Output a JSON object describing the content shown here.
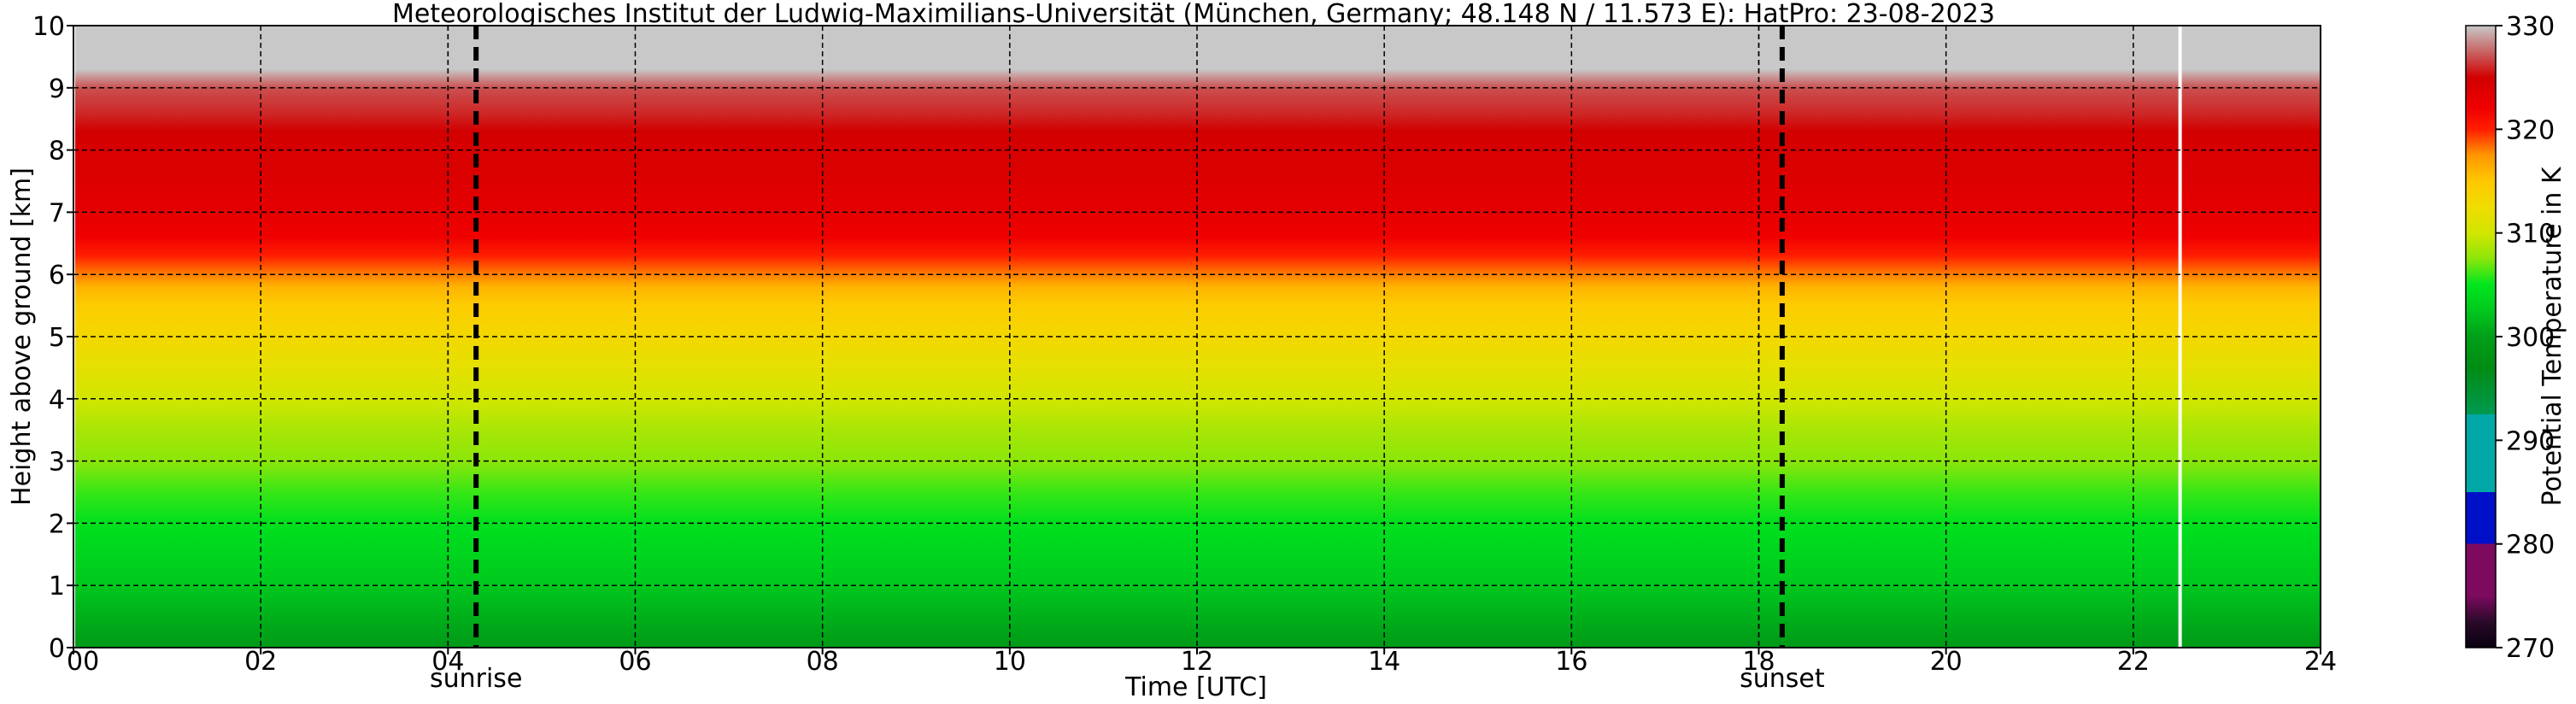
{
  "chart_data": {
    "type": "heatmap",
    "title": "Meteorologisches Institut der Ludwig-Maximilians-Universität (München, Germany; 48.148 N / 11.573 E):    HatPro: 23-08-2023",
    "xlabel": "Time [UTC]",
    "ylabel": "Height above ground [km]",
    "colorbar_label": "Potential Temperature in K",
    "xlim": [
      0,
      24
    ],
    "ylim": [
      0,
      10
    ],
    "x_ticks": [
      0,
      2,
      4,
      6,
      8,
      10,
      12,
      14,
      16,
      18,
      20,
      22,
      24
    ],
    "x_tick_labels": [
      "00",
      "02",
      "04",
      "06",
      "08",
      "10",
      "12",
      "14",
      "16",
      "18",
      "20",
      "22",
      "24"
    ],
    "y_ticks": [
      0,
      1,
      2,
      3,
      4,
      5,
      6,
      7,
      8,
      9,
      10
    ],
    "y_tick_labels": [
      "0",
      "1",
      "2",
      "3",
      "4",
      "5",
      "6",
      "7",
      "8",
      "9",
      "10"
    ],
    "colorbar_range": [
      270,
      330
    ],
    "colorbar_ticks": [
      270,
      280,
      290,
      300,
      310,
      320,
      330
    ],
    "grid": true,
    "markers": [
      {
        "label": "sunrise",
        "x": 4.3
      },
      {
        "label": "sunset",
        "x": 18.25
      }
    ],
    "extra_gridlines_x": [
      4.0,
      18.0
    ],
    "data_gap_x": 22.5,
    "height_km": [
      0,
      0.5,
      1,
      1.5,
      2,
      2.5,
      3,
      3.5,
      4,
      4.5,
      5,
      5.5,
      5.8,
      6,
      6.3,
      6.6,
      7,
      7.5,
      8,
      8.3,
      8.6,
      9,
      9.3,
      10
    ],
    "potential_temperature_K": [
      299,
      301,
      302.5,
      303.5,
      304.5,
      306,
      307.5,
      308.5,
      310,
      311.5,
      313,
      314.5,
      316,
      318,
      320,
      322,
      323,
      324,
      324.5,
      325,
      326,
      327,
      330,
      330
    ],
    "colormap": [
      {
        "value": 270,
        "color": "#0a0010"
      },
      {
        "value": 272.5,
        "color": "#2a0a2a"
      },
      {
        "value": 275,
        "color": "#7d0a5f"
      },
      {
        "value": 280,
        "color": "#7d0a5f"
      },
      {
        "value": 280.01,
        "color": "#0010c8"
      },
      {
        "value": 285,
        "color": "#0010c8"
      },
      {
        "value": 285.01,
        "color": "#00a8a8"
      },
      {
        "value": 292.5,
        "color": "#00a8a8"
      },
      {
        "value": 292.51,
        "color": "#009a50"
      },
      {
        "value": 297,
        "color": "#008c14"
      },
      {
        "value": 300,
        "color": "#00a018"
      },
      {
        "value": 302.5,
        "color": "#00c81e"
      },
      {
        "value": 305,
        "color": "#00e61e"
      },
      {
        "value": 307.5,
        "color": "#8ce60a"
      },
      {
        "value": 310,
        "color": "#d2e600"
      },
      {
        "value": 312.5,
        "color": "#f0dc00"
      },
      {
        "value": 315,
        "color": "#ffc800"
      },
      {
        "value": 317.5,
        "color": "#ff9600"
      },
      {
        "value": 320,
        "color": "#ff1e00"
      },
      {
        "value": 322,
        "color": "#f00000"
      },
      {
        "value": 325,
        "color": "#d20000"
      },
      {
        "value": 327.5,
        "color": "#c86464"
      },
      {
        "value": 330,
        "color": "#c8c8c8"
      }
    ],
    "colors": {
      "grid": "#000000",
      "marker_line": "#000000",
      "data_gap": "#ffffff",
      "missing": "#c8c8c8"
    }
  }
}
